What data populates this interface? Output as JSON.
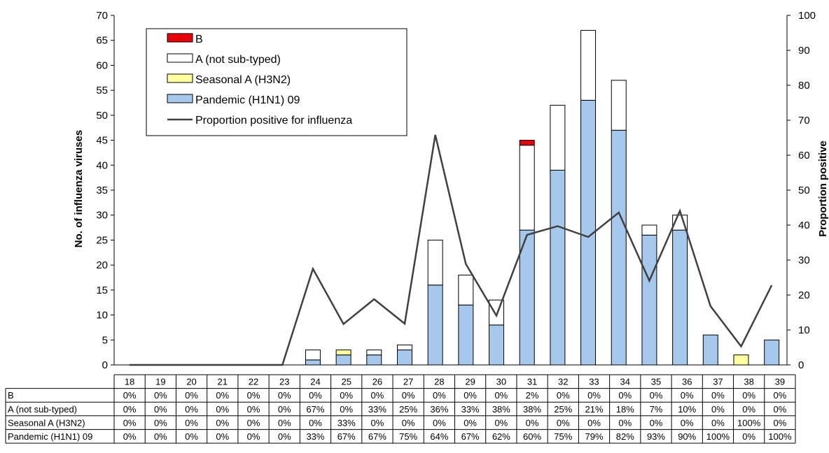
{
  "chart_data": {
    "type": "bar",
    "stacked": true,
    "categories": [
      "18",
      "19",
      "20",
      "21",
      "22",
      "23",
      "24",
      "25",
      "26",
      "27",
      "28",
      "29",
      "30",
      "31",
      "32",
      "33",
      "34",
      "35",
      "36",
      "37",
      "38",
      "39"
    ],
    "series": [
      {
        "name": "B",
        "color": "#e8000b",
        "values": [
          0,
          0,
          0,
          0,
          0,
          0,
          0,
          0,
          0,
          0,
          0,
          0,
          0,
          1,
          0,
          0,
          0,
          0,
          0,
          0,
          0,
          0
        ]
      },
      {
        "name": "A (not sub-typed)",
        "color": "#ffffff",
        "values": [
          0,
          0,
          0,
          0,
          0,
          0,
          2,
          0,
          1,
          1,
          9,
          6,
          5,
          17,
          13,
          14,
          10,
          2,
          3,
          0,
          0,
          0
        ]
      },
      {
        "name": "Seasonal A (H3N2)",
        "color": "#ffffa0",
        "values": [
          0,
          0,
          0,
          0,
          0,
          0,
          0,
          1,
          0,
          0,
          0,
          0,
          0,
          0,
          0,
          0,
          0,
          0,
          0,
          0,
          2,
          0
        ]
      },
      {
        "name": "Pandemic (H1N1) 09",
        "color": "#a6c8ec",
        "values": [
          0,
          0,
          0,
          0,
          0,
          0,
          1,
          2,
          2,
          3,
          16,
          12,
          8,
          27,
          39,
          53,
          47,
          26,
          27,
          6,
          0,
          5
        ]
      }
    ],
    "line_series": {
      "name": "Proportion positive for influenza",
      "color": "#404040",
      "axis": "right",
      "values": [
        0,
        0,
        0,
        0,
        0,
        0,
        27.5,
        11.7,
        18.8,
        11.8,
        65.8,
        28.9,
        14.1,
        37.2,
        39.7,
        36.6,
        43.6,
        24.1,
        44.1,
        16.8,
        5.3,
        22.8
      ]
    },
    "ylabel": "No. of influenza viruses",
    "ylabel_right": "Proportion positive",
    "ylim": [
      0,
      70
    ],
    "yticks": [
      0,
      5,
      10,
      15,
      20,
      25,
      30,
      35,
      40,
      45,
      50,
      55,
      60,
      65,
      70
    ],
    "ylim_right": [
      0,
      100
    ],
    "yticks_right": [
      0,
      10,
      20,
      30,
      40,
      50,
      60,
      70,
      80,
      90,
      100
    ],
    "legend": {
      "placement": "top-left",
      "order": [
        "B",
        "A (not sub-typed)",
        "Seasonal A (H3N2)",
        "Pandemic (H1N1) 09",
        "Proportion positive for influenza"
      ]
    },
    "table": {
      "rows": [
        {
          "label": "B",
          "values": [
            "0%",
            "0%",
            "0%",
            "0%",
            "0%",
            "0%",
            "0%",
            "0%",
            "0%",
            "0%",
            "0%",
            "0%",
            "0%",
            "2%",
            "0%",
            "0%",
            "0%",
            "0%",
            "0%",
            "0%",
            "0%",
            "0%"
          ]
        },
        {
          "label": "A (not sub-typed)",
          "values": [
            "0%",
            "0%",
            "0%",
            "0%",
            "0%",
            "0%",
            "67%",
            "0%",
            "33%",
            "25%",
            "36%",
            "33%",
            "38%",
            "38%",
            "25%",
            "21%",
            "18%",
            "7%",
            "10%",
            "0%",
            "0%",
            "0%"
          ]
        },
        {
          "label": "Seasonal A (H3N2)",
          "values": [
            "0%",
            "0%",
            "0%",
            "0%",
            "0%",
            "0%",
            "0%",
            "33%",
            "0%",
            "0%",
            "0%",
            "0%",
            "0%",
            "0%",
            "0%",
            "0%",
            "0%",
            "0%",
            "0%",
            "0%",
            "100%",
            "0%"
          ]
        },
        {
          "label": "Pandemic (H1N1) 09",
          "values": [
            "0%",
            "0%",
            "0%",
            "0%",
            "0%",
            "0%",
            "33%",
            "67%",
            "67%",
            "75%",
            "64%",
            "67%",
            "62%",
            "60%",
            "75%",
            "79%",
            "82%",
            "93%",
            "90%",
            "100%",
            "0%",
            "100%"
          ]
        }
      ]
    }
  }
}
